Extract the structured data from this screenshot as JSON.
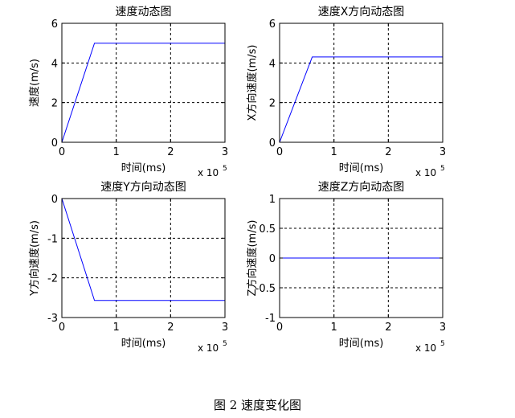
{
  "figure": {
    "caption": "图 2  速度变化图"
  },
  "chart_data": [
    {
      "type": "line",
      "title": "速度动态图",
      "xlabel": "时间(ms)",
      "ylabel": "速度(m/s)",
      "x_exponent": "x 10",
      "x_exponent_power": "5",
      "xlim": [
        0,
        3
      ],
      "ylim": [
        0,
        6
      ],
      "xticks": [
        "0",
        "1",
        "2",
        "3"
      ],
      "yticks": [
        "0",
        "2",
        "4",
        "6"
      ],
      "xtick_values": [
        0,
        1,
        2,
        3
      ],
      "ytick_values": [
        0,
        2,
        4,
        6
      ],
      "grid": true,
      "color": "#0000ff",
      "series": [
        {
          "x": [
            0,
            0.6,
            3
          ],
          "y": [
            0,
            5,
            5
          ]
        }
      ]
    },
    {
      "type": "line",
      "title": "速度X方向动态图",
      "xlabel": "时间(ms)",
      "ylabel": "X方向速度(m/s)",
      "x_exponent": "x 10",
      "x_exponent_power": "5",
      "xlim": [
        0,
        3
      ],
      "ylim": [
        0,
        6
      ],
      "xticks": [
        "0",
        "1",
        "2",
        "3"
      ],
      "yticks": [
        "0",
        "2",
        "4",
        "6"
      ],
      "xtick_values": [
        0,
        1,
        2,
        3
      ],
      "ytick_values": [
        0,
        2,
        4,
        6
      ],
      "grid": true,
      "color": "#0000ff",
      "series": [
        {
          "x": [
            0,
            0.6,
            3
          ],
          "y": [
            0,
            4.3,
            4.3
          ]
        }
      ]
    },
    {
      "type": "line",
      "title": "速度Y方向动态图",
      "xlabel": "时间(ms)",
      "ylabel": "Y方向速度(m/s)",
      "x_exponent": "x 10",
      "x_exponent_power": "5",
      "xlim": [
        0,
        3
      ],
      "ylim": [
        -3,
        0
      ],
      "xticks": [
        "0",
        "1",
        "2",
        "3"
      ],
      "yticks": [
        "-3",
        "-2",
        "-1",
        "0"
      ],
      "xtick_values": [
        0,
        1,
        2,
        3
      ],
      "ytick_values": [
        -3,
        -2,
        -1,
        0
      ],
      "grid": true,
      "color": "#0000ff",
      "series": [
        {
          "x": [
            0,
            0.6,
            3
          ],
          "y": [
            0,
            -2.57,
            -2.57
          ]
        }
      ]
    },
    {
      "type": "line",
      "title": "速度Z方向动态图",
      "xlabel": "时间(ms)",
      "ylabel": "Z方向速度(m/s)",
      "x_exponent": "x 10",
      "x_exponent_power": "5",
      "xlim": [
        0,
        3
      ],
      "ylim": [
        -1,
        1
      ],
      "xticks": [
        "0",
        "1",
        "2",
        "3"
      ],
      "yticks": [
        "-1",
        "-0.5",
        "0",
        "0.5",
        "1"
      ],
      "xtick_values": [
        0,
        1,
        2,
        3
      ],
      "ytick_values": [
        -1,
        -0.5,
        0,
        0.5,
        1
      ],
      "grid": true,
      "color": "#0000ff",
      "series": [
        {
          "x": [
            0,
            3
          ],
          "y": [
            0,
            0
          ]
        }
      ]
    }
  ]
}
